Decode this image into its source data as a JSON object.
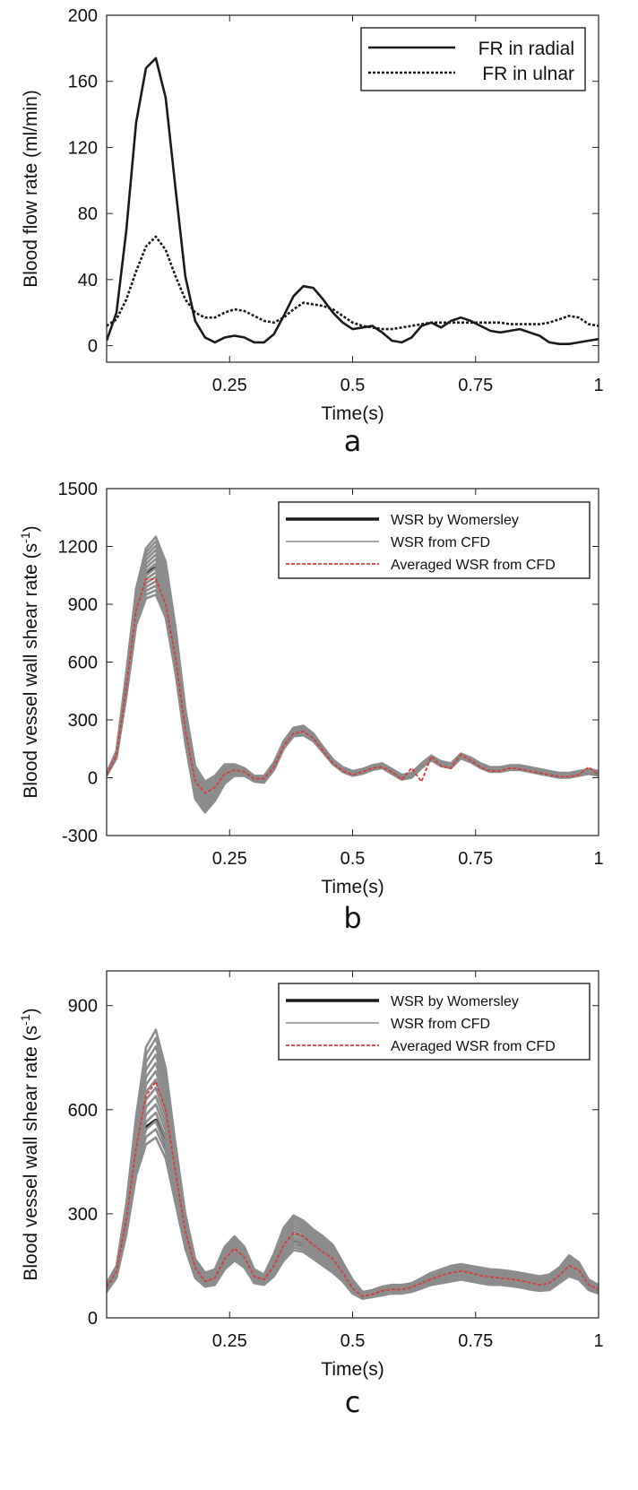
{
  "chart_data": [
    {
      "type": "line",
      "panel_label": "a",
      "xlabel": "Time(s)",
      "ylabel": "Blood flow rate (ml/min)",
      "xlim": [
        0,
        1
      ],
      "ylim": [
        -10,
        200
      ],
      "xticks": [
        "0.25",
        "0.5",
        "0.75",
        "1"
      ],
      "yticks": [
        "0",
        "40",
        "80",
        "120",
        "160",
        "200"
      ],
      "legend_position": "top-right",
      "series": [
        {
          "name": "FR in radial",
          "style": "solid-black",
          "x": [
            0,
            0.02,
            0.04,
            0.06,
            0.08,
            0.1,
            0.12,
            0.14,
            0.16,
            0.18,
            0.2,
            0.22,
            0.24,
            0.26,
            0.28,
            0.3,
            0.32,
            0.34,
            0.36,
            0.38,
            0.4,
            0.42,
            0.44,
            0.46,
            0.48,
            0.5,
            0.52,
            0.54,
            0.56,
            0.58,
            0.6,
            0.62,
            0.64,
            0.66,
            0.68,
            0.7,
            0.72,
            0.74,
            0.76,
            0.78,
            0.8,
            0.82,
            0.84,
            0.86,
            0.88,
            0.9,
            0.92,
            0.94,
            0.96,
            0.98,
            1.0
          ],
          "y": [
            3,
            20,
            70,
            135,
            168,
            174,
            150,
            95,
            42,
            15,
            5,
            2,
            5,
            6,
            5,
            2,
            2,
            7,
            18,
            30,
            36,
            35,
            28,
            20,
            14,
            10,
            11,
            12,
            8,
            3,
            2,
            5,
            12,
            14,
            11,
            15,
            17,
            15,
            12,
            9,
            8,
            9,
            10,
            8,
            6,
            2,
            1,
            1,
            2,
            3,
            4
          ]
        },
        {
          "name": "FR in ulnar",
          "style": "dotted-black",
          "x": [
            0,
            0.02,
            0.04,
            0.06,
            0.08,
            0.1,
            0.12,
            0.14,
            0.16,
            0.18,
            0.2,
            0.22,
            0.24,
            0.26,
            0.28,
            0.3,
            0.32,
            0.34,
            0.36,
            0.38,
            0.4,
            0.42,
            0.44,
            0.46,
            0.48,
            0.5,
            0.52,
            0.54,
            0.56,
            0.58,
            0.6,
            0.62,
            0.64,
            0.66,
            0.68,
            0.7,
            0.72,
            0.74,
            0.76,
            0.78,
            0.8,
            0.82,
            0.84,
            0.86,
            0.88,
            0.9,
            0.92,
            0.94,
            0.96,
            0.98,
            1.0
          ],
          "y": [
            12,
            16,
            28,
            45,
            60,
            66,
            58,
            42,
            28,
            20,
            17,
            17,
            20,
            22,
            21,
            18,
            15,
            14,
            17,
            22,
            26,
            25,
            24,
            22,
            18,
            14,
            12,
            11,
            10,
            10,
            11,
            12,
            13,
            14,
            14,
            14,
            14,
            14,
            14,
            14,
            14,
            13,
            13,
            13,
            13,
            14,
            16,
            18,
            17,
            13,
            12
          ]
        }
      ]
    },
    {
      "type": "line",
      "panel_label": "b",
      "xlabel": "Time(s)",
      "ylabel": "Blood vessel wall shear rate (s",
      "ylabel_sup": "-1",
      "ylabel_close": ")",
      "xlim": [
        0,
        1
      ],
      "ylim": [
        -300,
        1500
      ],
      "xticks": [
        "0.25",
        "0.5",
        "0.75",
        "1"
      ],
      "yticks": [
        "-300",
        "0",
        "300",
        "600",
        "900",
        "1200",
        "1500"
      ],
      "legend_position": "top-right",
      "series": [
        {
          "name": "WSR by Womersley",
          "style": "thick-black",
          "x": [
            0,
            0.02,
            0.04,
            0.06,
            0.08,
            0.1,
            0.12,
            0.14,
            0.16,
            0.18,
            0.2,
            0.22,
            0.24,
            0.26,
            0.28,
            0.3,
            0.32,
            0.34,
            0.36,
            0.38,
            0.4,
            0.42,
            0.44,
            0.46,
            0.48,
            0.5,
            0.52,
            0.54,
            0.56,
            0.58,
            0.6,
            0.62,
            0.64,
            0.66,
            0.68,
            0.7,
            0.72,
            0.74,
            0.76,
            0.78,
            0.8,
            0.82,
            0.84,
            0.86,
            0.88,
            0.9,
            0.92,
            0.94,
            0.96,
            0.98,
            1.0
          ],
          "y": [
            20,
            120,
            480,
            880,
            1060,
            1090,
            960,
            640,
            250,
            -40,
            -120,
            -80,
            10,
            40,
            30,
            -10,
            -10,
            60,
            170,
            240,
            250,
            210,
            140,
            80,
            40,
            20,
            30,
            50,
            60,
            30,
            0,
            10,
            60,
            100,
            70,
            60,
            110,
            90,
            60,
            40,
            40,
            50,
            50,
            40,
            30,
            20,
            10,
            10,
            20,
            30,
            20
          ]
        },
        {
          "name": "WSR from CFD",
          "style": "thin-gray-band",
          "x": [
            0,
            0.02,
            0.04,
            0.06,
            0.08,
            0.1,
            0.12,
            0.14,
            0.16,
            0.18,
            0.2,
            0.22,
            0.24,
            0.26,
            0.28,
            0.3,
            0.32,
            0.34,
            0.36,
            0.38,
            0.4,
            0.42,
            0.44,
            0.46,
            0.48,
            0.5,
            0.52,
            0.54,
            0.56,
            0.58,
            0.6,
            0.62,
            0.64,
            0.66,
            0.68,
            0.7,
            0.72,
            0.74,
            0.76,
            0.78,
            0.8,
            0.82,
            0.84,
            0.86,
            0.88,
            0.9,
            0.92,
            0.94,
            0.96,
            0.98,
            1.0
          ],
          "y_low": [
            10,
            100,
            420,
            790,
            930,
            950,
            830,
            540,
            180,
            -110,
            -180,
            -120,
            -30,
            10,
            10,
            -20,
            -25,
            40,
            150,
            215,
            220,
            190,
            130,
            70,
            30,
            10,
            20,
            40,
            50,
            20,
            -10,
            0,
            50,
            90,
            60,
            50,
            100,
            80,
            50,
            30,
            30,
            40,
            40,
            30,
            20,
            10,
            0,
            0,
            10,
            20,
            10
          ],
          "y_high": [
            25,
            140,
            550,
            980,
            1190,
            1250,
            1120,
            780,
            360,
            60,
            -20,
            10,
            70,
            70,
            50,
            10,
            10,
            80,
            190,
            260,
            270,
            230,
            160,
            95,
            55,
            35,
            45,
            65,
            75,
            45,
            15,
            25,
            75,
            115,
            85,
            75,
            125,
            105,
            75,
            55,
            55,
            65,
            65,
            55,
            45,
            35,
            25,
            25,
            35,
            45,
            35
          ]
        },
        {
          "name": "Averaged WSR from CFD",
          "style": "dashed-red",
          "x": [
            0,
            0.02,
            0.04,
            0.06,
            0.08,
            0.1,
            0.12,
            0.14,
            0.16,
            0.18,
            0.2,
            0.22,
            0.24,
            0.26,
            0.28,
            0.3,
            0.32,
            0.34,
            0.36,
            0.38,
            0.4,
            0.42,
            0.44,
            0.46,
            0.48,
            0.5,
            0.52,
            0.54,
            0.56,
            0.58,
            0.6,
            0.62,
            0.64,
            0.66,
            0.68,
            0.7,
            0.72,
            0.74,
            0.76,
            0.78,
            0.8,
            0.82,
            0.84,
            0.86,
            0.88,
            0.9,
            0.92,
            0.94,
            0.96,
            0.98,
            1.0
          ],
          "y": [
            18,
            115,
            470,
            870,
            1030,
            1030,
            900,
            620,
            250,
            -20,
            -80,
            -50,
            20,
            40,
            30,
            -5,
            -5,
            55,
            165,
            230,
            240,
            205,
            140,
            75,
            35,
            15,
            30,
            50,
            55,
            30,
            -10,
            50,
            -20,
            110,
            60,
            50,
            120,
            90,
            55,
            35,
            35,
            50,
            45,
            35,
            25,
            15,
            5,
            5,
            15,
            55,
            15
          ]
        }
      ]
    },
    {
      "type": "line",
      "panel_label": "c",
      "xlabel": "Time(s)",
      "ylabel": "Blood vessel wall shear rate (s",
      "ylabel_sup": "-1",
      "ylabel_close": ")",
      "xlim": [
        0,
        1
      ],
      "ylim": [
        0,
        1000
      ],
      "xticks": [
        "0.25",
        "0.5",
        "0.75",
        "1"
      ],
      "yticks": [
        "0",
        "300",
        "600",
        "900"
      ],
      "legend_position": "top-right",
      "series": [
        {
          "name": "WSR by Womersley",
          "style": "thick-black",
          "x": [
            0,
            0.02,
            0.04,
            0.06,
            0.08,
            0.1,
            0.12,
            0.14,
            0.16,
            0.18,
            0.2,
            0.22,
            0.24,
            0.26,
            0.28,
            0.3,
            0.32,
            0.34,
            0.36,
            0.38,
            0.4,
            0.42,
            0.44,
            0.46,
            0.48,
            0.5,
            0.52,
            0.54,
            0.56,
            0.58,
            0.6,
            0.62,
            0.64,
            0.66,
            0.68,
            0.7,
            0.72,
            0.74,
            0.76,
            0.78,
            0.8,
            0.82,
            0.84,
            0.86,
            0.88,
            0.9,
            0.92,
            0.94,
            0.96,
            0.98,
            1.0
          ],
          "y": [
            90,
            130,
            260,
            440,
            550,
            570,
            500,
            360,
            220,
            130,
            95,
            100,
            150,
            180,
            160,
            110,
            100,
            130,
            180,
            220,
            210,
            190,
            170,
            150,
            120,
            80,
            60,
            65,
            75,
            80,
            80,
            85,
            95,
            105,
            115,
            120,
            125,
            120,
            115,
            110,
            108,
            105,
            100,
            95,
            90,
            95,
            115,
            140,
            130,
            90,
            80
          ]
        },
        {
          "name": "WSR from CFD",
          "style": "thin-gray-band",
          "x": [
            0,
            0.02,
            0.04,
            0.06,
            0.08,
            0.1,
            0.12,
            0.14,
            0.16,
            0.18,
            0.2,
            0.22,
            0.24,
            0.26,
            0.28,
            0.3,
            0.32,
            0.34,
            0.36,
            0.38,
            0.4,
            0.42,
            0.44,
            0.46,
            0.48,
            0.5,
            0.52,
            0.54,
            0.56,
            0.58,
            0.6,
            0.62,
            0.64,
            0.66,
            0.68,
            0.7,
            0.72,
            0.74,
            0.76,
            0.78,
            0.8,
            0.82,
            0.84,
            0.86,
            0.88,
            0.9,
            0.92,
            0.94,
            0.96,
            0.98,
            1.0
          ],
          "y_low": [
            75,
            115,
            240,
            410,
            500,
            520,
            460,
            330,
            200,
            115,
            90,
            95,
            140,
            165,
            145,
            100,
            95,
            120,
            165,
            195,
            190,
            170,
            150,
            130,
            105,
            70,
            55,
            60,
            65,
            70,
            70,
            75,
            85,
            95,
            100,
            105,
            110,
            105,
            100,
            95,
            95,
            92,
            88,
            82,
            78,
            80,
            100,
            120,
            110,
            80,
            70
          ],
          "y_high": [
            100,
            150,
            330,
            580,
            780,
            830,
            720,
            500,
            300,
            170,
            130,
            140,
            205,
            235,
            205,
            140,
            125,
            185,
            260,
            295,
            280,
            255,
            235,
            210,
            160,
            110,
            75,
            80,
            90,
            95,
            95,
            100,
            115,
            130,
            140,
            150,
            155,
            150,
            145,
            140,
            138,
            135,
            130,
            125,
            120,
            125,
            145,
            180,
            160,
            110,
            95
          ]
        },
        {
          "name": "Averaged WSR from CFD",
          "style": "dashed-red",
          "x": [
            0,
            0.02,
            0.04,
            0.06,
            0.08,
            0.1,
            0.12,
            0.14,
            0.16,
            0.18,
            0.2,
            0.22,
            0.24,
            0.26,
            0.28,
            0.3,
            0.32,
            0.34,
            0.36,
            0.38,
            0.4,
            0.42,
            0.44,
            0.46,
            0.48,
            0.5,
            0.52,
            0.54,
            0.56,
            0.58,
            0.6,
            0.62,
            0.64,
            0.66,
            0.68,
            0.7,
            0.72,
            0.74,
            0.76,
            0.78,
            0.8,
            0.82,
            0.84,
            0.86,
            0.88,
            0.9,
            0.92,
            0.94,
            0.96,
            0.98,
            1.0
          ],
          "y": [
            88,
            135,
            285,
            490,
            640,
            680,
            600,
            420,
            250,
            145,
            105,
            115,
            170,
            200,
            175,
            120,
            110,
            150,
            210,
            245,
            235,
            210,
            190,
            170,
            130,
            85,
            62,
            68,
            78,
            82,
            82,
            88,
            100,
            112,
            122,
            130,
            135,
            130,
            122,
            118,
            115,
            112,
            108,
            102,
            95,
            100,
            122,
            150,
            138,
            95,
            82
          ]
        }
      ]
    }
  ]
}
